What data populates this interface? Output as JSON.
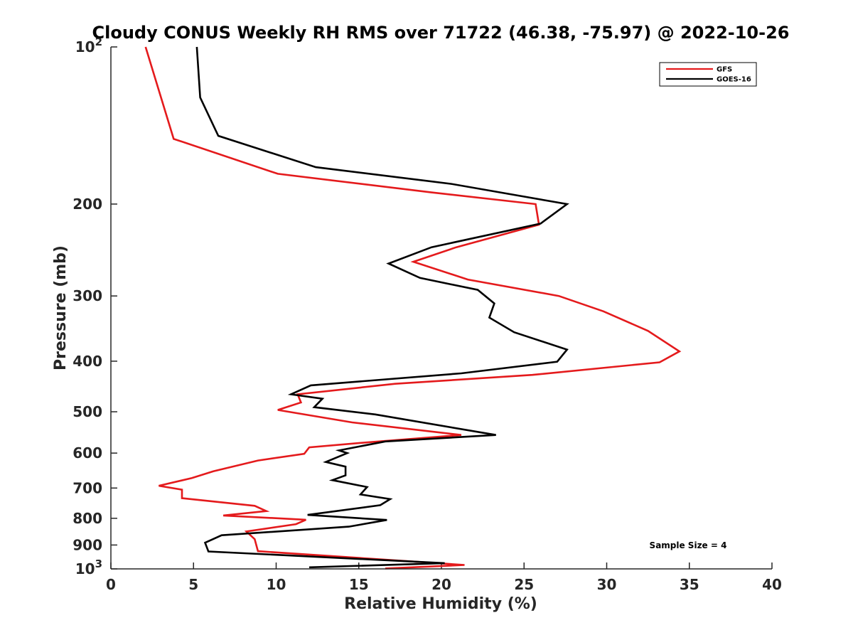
{
  "chart_data": {
    "type": "line",
    "title": "Cloudy CONUS Weekly RH RMS over 71722 (46.38, -75.97) @ 2022-10-26",
    "xlabel": "Relative Humidity (%)",
    "ylabel": "Pressure (mb)",
    "xlim": [
      0,
      40
    ],
    "ylim": [
      100,
      1000
    ],
    "y_scale": "log",
    "y_reversed": true,
    "x_ticks": [
      0,
      5,
      10,
      15,
      20,
      25,
      30,
      35,
      40
    ],
    "x_tick_labels": [
      "0",
      "5",
      "10",
      "15",
      "20",
      "25",
      "30",
      "35",
      "40"
    ],
    "y_ticks": [
      {
        "value": 100,
        "base": "10",
        "exp": "2"
      },
      {
        "value": 200,
        "label": "200"
      },
      {
        "value": 300,
        "label": "300"
      },
      {
        "value": 400,
        "label": "400"
      },
      {
        "value": 500,
        "label": "500"
      },
      {
        "value": 600,
        "label": "600"
      },
      {
        "value": 700,
        "label": "700"
      },
      {
        "value": 800,
        "label": "800"
      },
      {
        "value": 900,
        "label": "900"
      },
      {
        "value": 1000,
        "base": "10",
        "exp": "3"
      }
    ],
    "legend": {
      "location": "top-right"
    },
    "annotation": "Sample Size = 4",
    "series": [
      {
        "name": "GFS",
        "color": "#e41a1c",
        "points": [
          [
            2.1,
            100
          ],
          [
            3.8,
            150
          ],
          [
            10.1,
            175
          ],
          [
            19.4,
            190
          ],
          [
            25.7,
            200
          ],
          [
            25.9,
            219
          ],
          [
            20.9,
            242
          ],
          [
            18.3,
            258
          ],
          [
            21.6,
            279
          ],
          [
            27.1,
            300
          ],
          [
            29.8,
            321
          ],
          [
            32.5,
            350
          ],
          [
            34.4,
            383
          ],
          [
            33.2,
            402
          ],
          [
            25.5,
            425
          ],
          [
            17.2,
            442
          ],
          [
            11.3,
            463
          ],
          [
            11.5,
            480
          ],
          [
            10.1,
            496
          ],
          [
            14.6,
            524
          ],
          [
            21.2,
            554
          ],
          [
            15.6,
            572
          ],
          [
            12.0,
            585
          ],
          [
            11.7,
            602
          ],
          [
            8.9,
            620
          ],
          [
            6.2,
            650
          ],
          [
            4.9,
            670
          ],
          [
            2.9,
            693
          ],
          [
            4.3,
            705
          ],
          [
            4.3,
            732
          ],
          [
            8.7,
            757
          ],
          [
            9.4,
            775
          ],
          [
            6.8,
            790
          ],
          [
            11.8,
            805
          ],
          [
            11.2,
            821
          ],
          [
            8.2,
            848
          ],
          [
            8.7,
            877
          ],
          [
            8.9,
            925
          ],
          [
            21.4,
            983
          ],
          [
            16.6,
            998
          ]
        ]
      },
      {
        "name": "GOES-16",
        "color": "#000000",
        "points": [
          [
            5.2,
            100
          ],
          [
            5.4,
            125
          ],
          [
            6.5,
            148
          ],
          [
            12.4,
            170
          ],
          [
            20.6,
            183
          ],
          [
            27.6,
            200
          ],
          [
            26.0,
            218
          ],
          [
            19.4,
            242
          ],
          [
            16.8,
            260
          ],
          [
            18.7,
            277
          ],
          [
            22.2,
            292
          ],
          [
            23.2,
            310
          ],
          [
            22.9,
            330
          ],
          [
            24.4,
            352
          ],
          [
            27.6,
            380
          ],
          [
            27.0,
            401
          ],
          [
            21.2,
            422
          ],
          [
            12.1,
            445
          ],
          [
            10.9,
            463
          ],
          [
            12.8,
            472
          ],
          [
            12.3,
            490
          ],
          [
            16.0,
            506
          ],
          [
            23.3,
            554
          ],
          [
            16.6,
            570
          ],
          [
            13.8,
            593
          ],
          [
            14.3,
            600
          ],
          [
            13.0,
            624
          ],
          [
            14.2,
            637
          ],
          [
            14.2,
            662
          ],
          [
            13.4,
            676
          ],
          [
            15.5,
            697
          ],
          [
            15.1,
            720
          ],
          [
            16.9,
            735
          ],
          [
            16.3,
            755
          ],
          [
            11.9,
            788
          ],
          [
            16.7,
            806
          ],
          [
            14.4,
            830
          ],
          [
            6.7,
            862
          ],
          [
            5.7,
            891
          ],
          [
            5.9,
            926
          ],
          [
            20.2,
            975
          ],
          [
            12.0,
            993
          ]
        ]
      }
    ]
  }
}
